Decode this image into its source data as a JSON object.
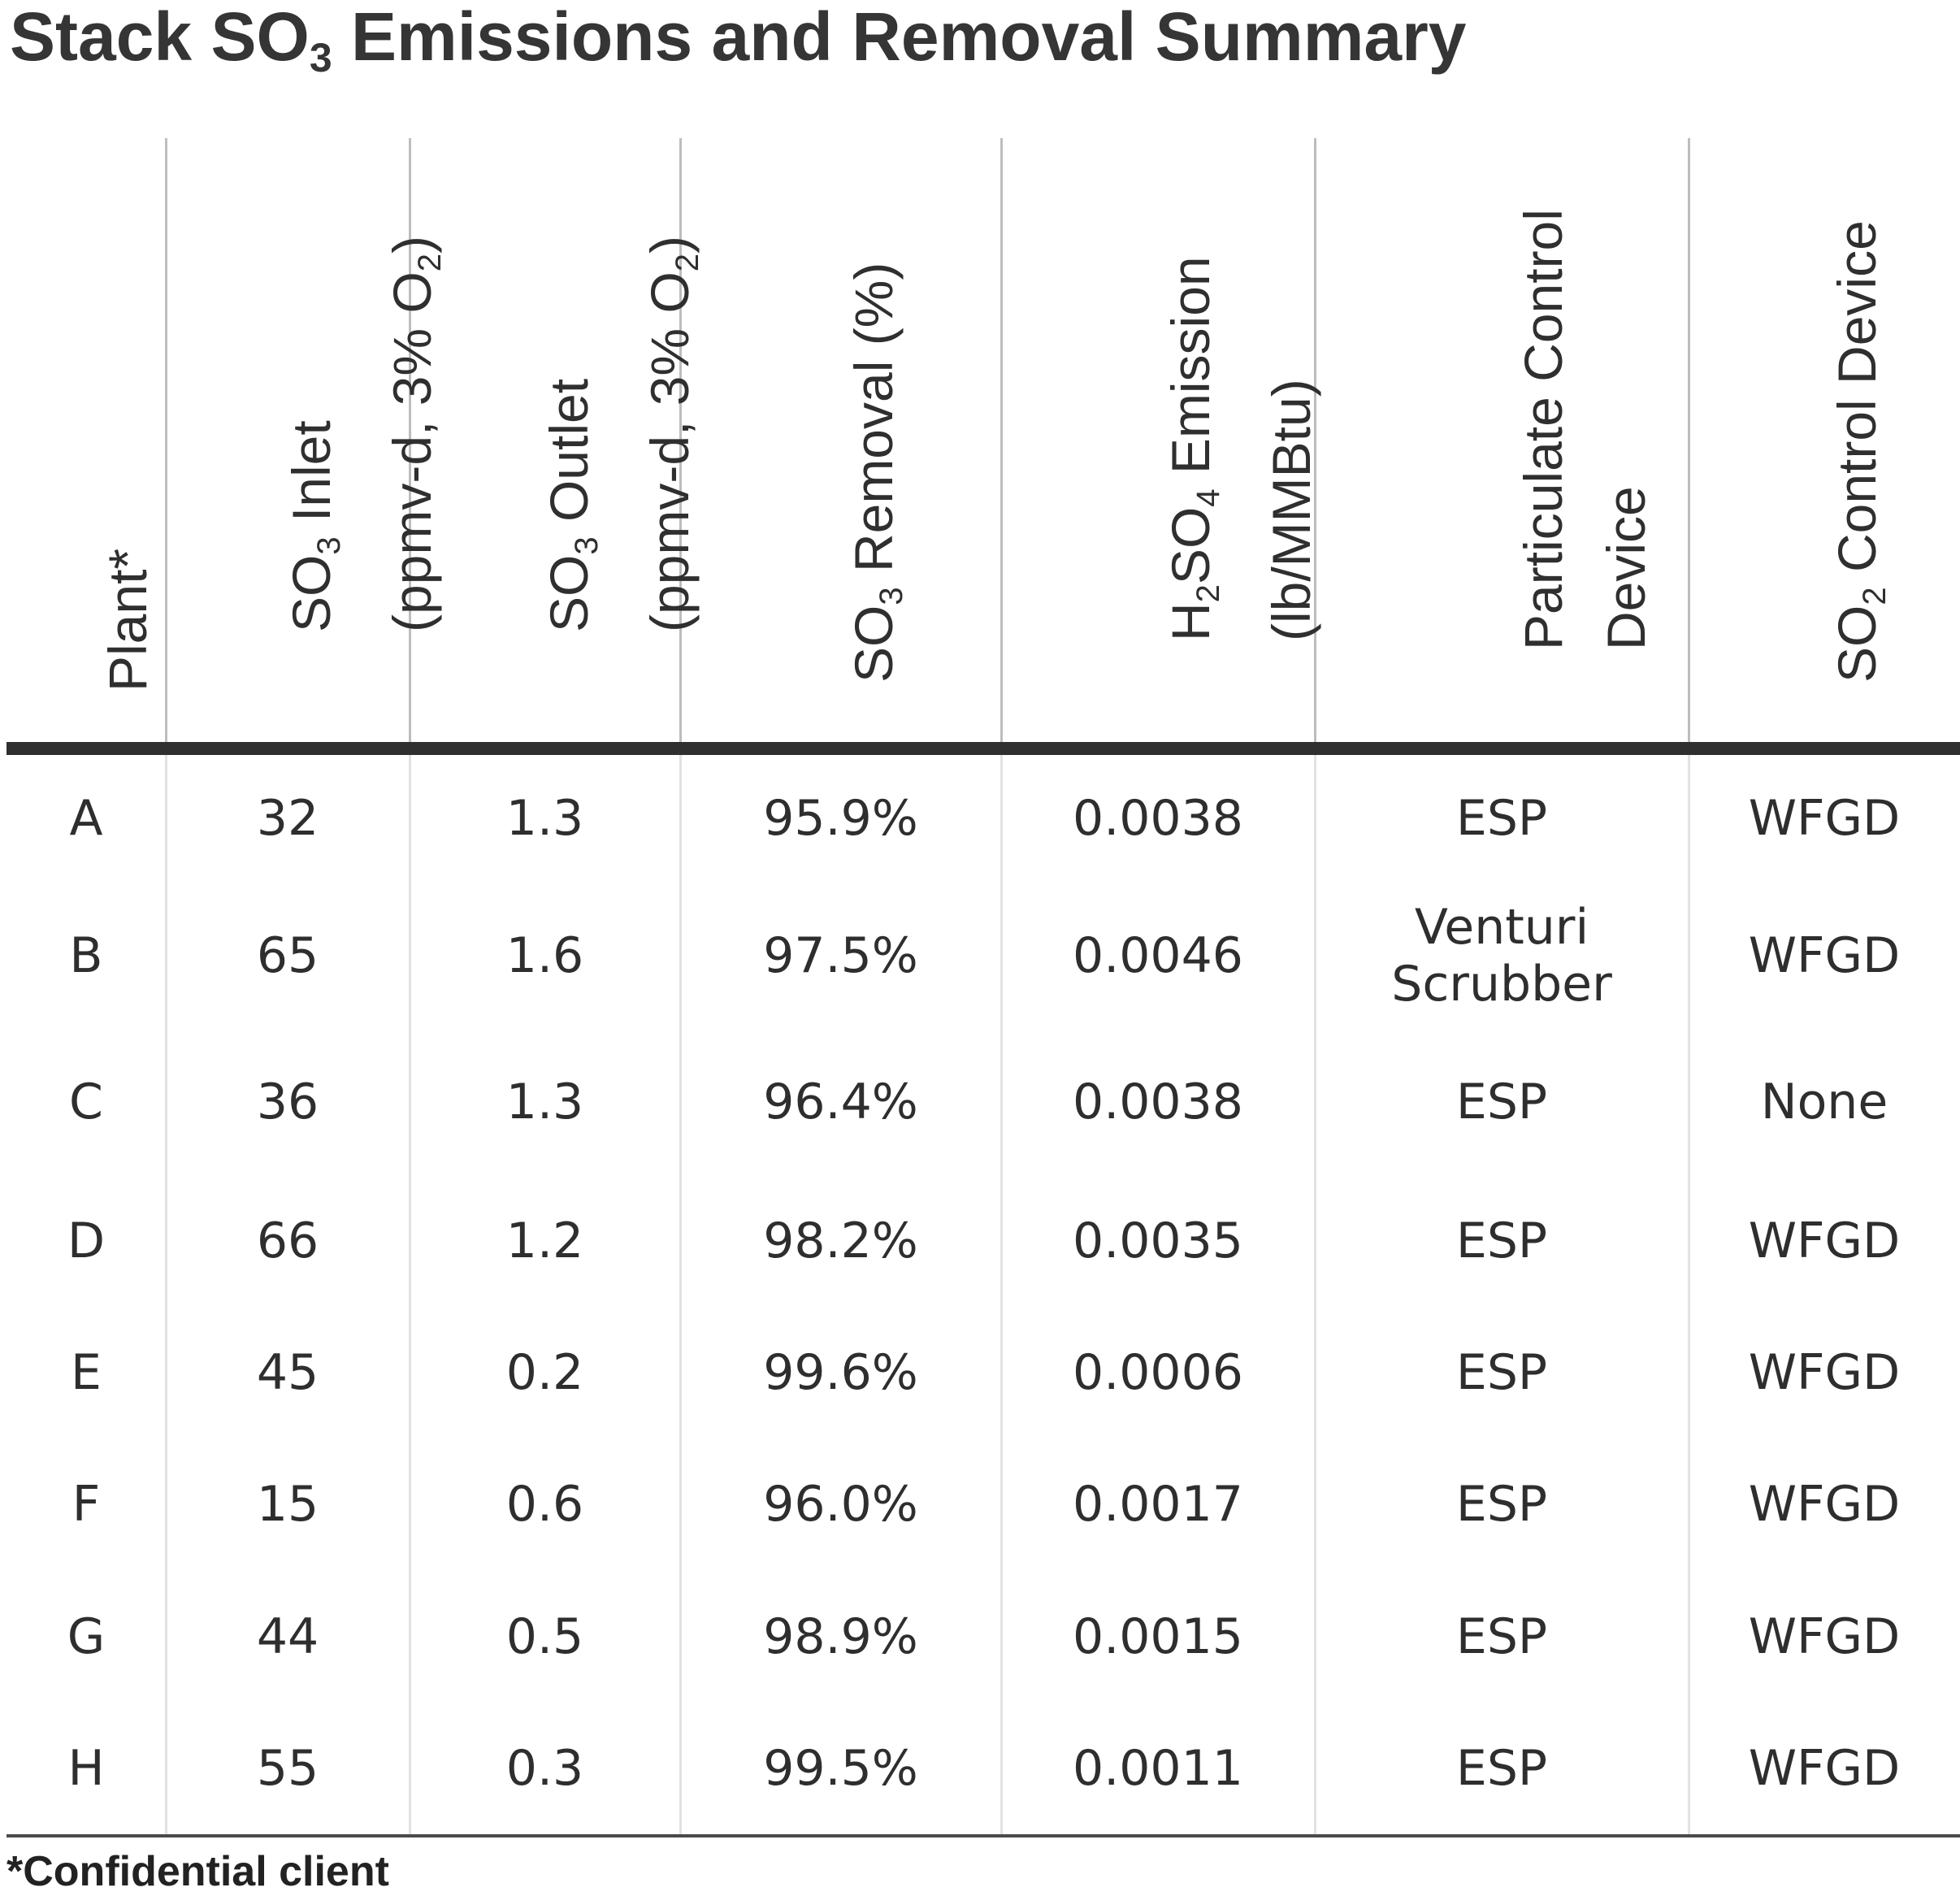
{
  "title": {
    "prefix": "Stack SO",
    "sub": "3",
    "suffix": " Emissions and Removal Summary"
  },
  "headers": [
    {
      "lines": [
        [
          {
            "t": "Plant*"
          }
        ]
      ]
    },
    {
      "lines": [
        [
          {
            "t": "SO"
          },
          {
            "t": "3",
            "sub": true
          },
          {
            "t": " Inlet"
          }
        ],
        [
          {
            "t": "(ppmv-d, 3% O"
          },
          {
            "t": "2",
            "sub": true
          },
          {
            "t": ")"
          }
        ]
      ]
    },
    {
      "lines": [
        [
          {
            "t": "SO"
          },
          {
            "t": "3",
            "sub": true
          },
          {
            "t": " Outlet"
          }
        ],
        [
          {
            "t": "(ppmv-d, 3% O"
          },
          {
            "t": "2",
            "sub": true
          },
          {
            "t": ")"
          }
        ]
      ]
    },
    {
      "lines": [
        [
          {
            "t": "SO"
          },
          {
            "t": "3",
            "sub": true
          },
          {
            "t": " Removal (%)"
          }
        ]
      ]
    },
    {
      "lines": [
        [
          {
            "t": "H"
          },
          {
            "t": "2",
            "sub": true
          },
          {
            "t": "SO"
          },
          {
            "t": "4",
            "sub": true
          },
          {
            "t": " Emission"
          }
        ],
        [
          {
            "t": "(lb/MMBtu)"
          }
        ]
      ]
    },
    {
      "lines": [
        [
          {
            "t": "Particulate Control"
          }
        ],
        [
          {
            "t": "Device"
          }
        ]
      ]
    },
    {
      "lines": [
        [
          {
            "t": "SO"
          },
          {
            "t": "2",
            "sub": true
          },
          {
            "t": " Control Device"
          }
        ]
      ]
    }
  ],
  "rows": [
    [
      "A",
      "32",
      "1.3",
      "95.9%",
      "0.0038",
      "ESP",
      "WFGD"
    ],
    [
      "B",
      "65",
      "1.6",
      "97.5%",
      "0.0046",
      "Venturi\nScrubber",
      "WFGD"
    ],
    [
      "C",
      "36",
      "1.3",
      "96.4%",
      "0.0038",
      "ESP",
      "None"
    ],
    [
      "D",
      "66",
      "1.2",
      "98.2%",
      "0.0035",
      "ESP",
      "WFGD"
    ],
    [
      "E",
      "45",
      "0.2",
      "99.6%",
      "0.0006",
      "ESP",
      "WFGD"
    ],
    [
      "F",
      "15",
      "0.6",
      "96.0%",
      "0.0017",
      "ESP",
      "WFGD"
    ],
    [
      "G",
      "44",
      "0.5",
      "98.9%",
      "0.0015",
      "ESP",
      "WFGD"
    ],
    [
      "H",
      "55",
      "0.3",
      "99.5%",
      "0.0011",
      "ESP",
      "WFGD"
    ]
  ],
  "footnote": "*Confidential client"
}
